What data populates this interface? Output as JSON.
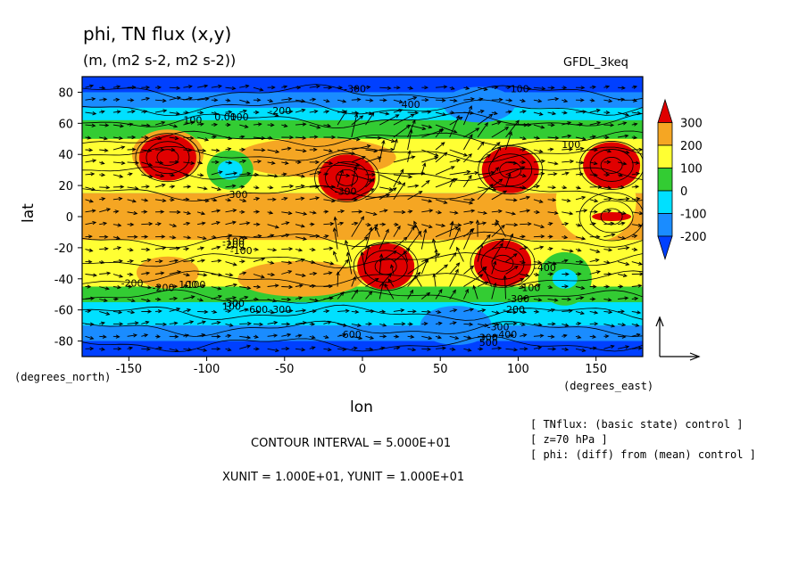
{
  "chart_data": {
    "type": "heatmap",
    "title": "phi, TN flux (x,y)",
    "subtitle": "(m, (m2 s-2, m2 s-2))",
    "model": "GFDL_3keq",
    "xlabel": "lon",
    "ylabel": "lat",
    "x_unit_note": "(degrees_east)",
    "y_unit_note": "(degrees_north)",
    "xlim": [
      -180,
      180
    ],
    "ylim": [
      -90,
      90
    ],
    "x_ticks": [
      "-150",
      "-100",
      "-50",
      "0",
      "50",
      "100",
      "150"
    ],
    "y_ticks": [
      "80",
      "60",
      "40",
      "20",
      "0",
      "-20",
      "-40",
      "-60",
      "-80"
    ],
    "colorbar": {
      "labels": [
        "300",
        "200",
        "100",
        "0",
        "-100",
        "-200"
      ],
      "colors": {
        "above_300": "#e00000",
        "200_300": "#f5a623",
        "100_200": "#ffff33",
        "0_100": "#33cc33",
        "-100_0": "#00e0ff",
        "-200_-100": "#1a8cff",
        "below_-200": "#0040ff"
      }
    },
    "contour_labels": [
      "-300",
      "100",
      "0.00",
      "100",
      "-200",
      "400",
      "-100",
      "-200",
      "-100",
      "100",
      "-200",
      "-200",
      "-100",
      "-300",
      "-600",
      "-300",
      "100",
      "-600",
      "300",
      "-400",
      "500",
      "100",
      "100",
      "-300",
      "-400",
      "-100",
      "-300",
      "-200",
      "-300",
      "-300"
    ],
    "features": {
      "highs": [
        {
          "lon": -125,
          "lat": 38,
          "value": "300+"
        },
        {
          "lon": -10,
          "lat": 25,
          "value": "300+"
        },
        {
          "lon": 95,
          "lat": 30,
          "value": "300+"
        },
        {
          "lon": 160,
          "lat": 33,
          "value": "300+"
        },
        {
          "lon": 160,
          "lat": 0,
          "value": "300+"
        },
        {
          "lon": 15,
          "lat": -32,
          "value": "300+"
        },
        {
          "lon": 90,
          "lat": -30,
          "value": "300+"
        }
      ],
      "lows": [
        {
          "lon": -85,
          "lat": 30,
          "value": "-100"
        },
        {
          "lon": 130,
          "lat": -40,
          "value": "-100"
        }
      ]
    },
    "contour_interval_text": "CONTOUR INTERVAL = 5.000E+01",
    "unit_text": "XUNIT = 1.000E+01, YUNIT = 1.000E+01"
  },
  "notes": {
    "line1": "[ TNflux: (basic state) control ]",
    "line2": "[ z=70 hPa ]",
    "line3": "[ phi: (diff) from (mean) control ]"
  }
}
